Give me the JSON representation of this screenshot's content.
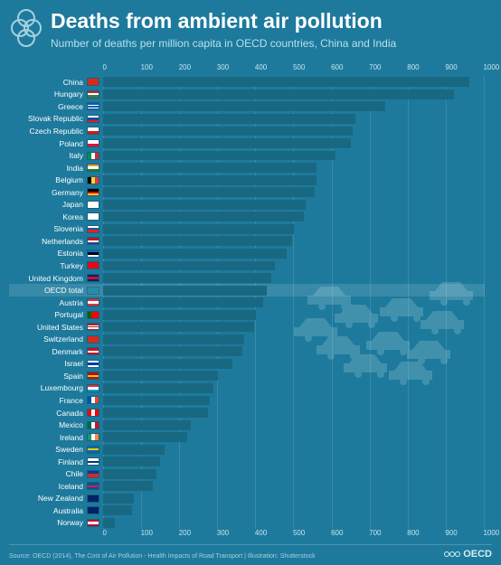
{
  "header": {
    "title": "Deaths from ambient air pollution",
    "subtitle": "Number of deaths per million capita in OECD countries, China and India"
  },
  "chart": {
    "type": "bar",
    "xlim": [
      0,
      1000
    ],
    "xtick_step": 100,
    "xticks": [
      "0",
      "100",
      "200",
      "300",
      "400",
      "500",
      "600",
      "700",
      "800",
      "900",
      "1000"
    ],
    "bar_color": "#196882",
    "background_color": "#1d7a9c",
    "grid_color": "rgba(255,255,255,0.12)",
    "highlight_row_color": "rgba(255,255,255,0.12)",
    "label_fontsize": 8.5,
    "axis_fontsize": 8,
    "label_color": "#ffffff",
    "axis_color": "#c7e4ee",
    "rows": [
      {
        "label": "China",
        "value": 960,
        "highlight": false,
        "flag": {
          "dir": "h",
          "stripes": [
            "#de2910",
            "#de2910"
          ]
        }
      },
      {
        "label": "Hungary",
        "value": 920,
        "highlight": false,
        "flag": {
          "dir": "h",
          "stripes": [
            "#cd212a",
            "#ffffff",
            "#3a7d44"
          ]
        }
      },
      {
        "label": "Greece",
        "value": 740,
        "highlight": false,
        "flag": {
          "dir": "h",
          "stripes": [
            "#0d5eaf",
            "#ffffff",
            "#0d5eaf",
            "#ffffff",
            "#0d5eaf"
          ]
        }
      },
      {
        "label": "Slovak Republic",
        "value": 660,
        "highlight": false,
        "flag": {
          "dir": "h",
          "stripes": [
            "#ffffff",
            "#0b4ea2",
            "#ee1620"
          ]
        }
      },
      {
        "label": "Czech Republic",
        "value": 655,
        "highlight": false,
        "flag": {
          "dir": "h",
          "stripes": [
            "#ffffff",
            "#d7141a"
          ]
        }
      },
      {
        "label": "Poland",
        "value": 650,
        "highlight": false,
        "flag": {
          "dir": "h",
          "stripes": [
            "#ffffff",
            "#dc143c"
          ]
        }
      },
      {
        "label": "Italy",
        "value": 610,
        "highlight": false,
        "flag": {
          "dir": "v",
          "stripes": [
            "#009246",
            "#ffffff",
            "#ce2b37"
          ]
        }
      },
      {
        "label": "India",
        "value": 560,
        "highlight": false,
        "flag": {
          "dir": "h",
          "stripes": [
            "#ff9933",
            "#ffffff",
            "#138808"
          ]
        }
      },
      {
        "label": "Belgium",
        "value": 560,
        "highlight": false,
        "flag": {
          "dir": "v",
          "stripes": [
            "#000000",
            "#fdda24",
            "#ef3340"
          ]
        }
      },
      {
        "label": "Germany",
        "value": 555,
        "highlight": false,
        "flag": {
          "dir": "h",
          "stripes": [
            "#000000",
            "#dd0000",
            "#ffce00"
          ]
        }
      },
      {
        "label": "Japan",
        "value": 530,
        "highlight": false,
        "flag": {
          "dir": "h",
          "stripes": [
            "#ffffff"
          ]
        }
      },
      {
        "label": "Korea",
        "value": 525,
        "highlight": false,
        "flag": {
          "dir": "h",
          "stripes": [
            "#ffffff"
          ]
        }
      },
      {
        "label": "Slovenia",
        "value": 500,
        "highlight": false,
        "flag": {
          "dir": "h",
          "stripes": [
            "#ffffff",
            "#005da4",
            "#ed1c24"
          ]
        }
      },
      {
        "label": "Netherlands",
        "value": 495,
        "highlight": false,
        "flag": {
          "dir": "h",
          "stripes": [
            "#ae1c28",
            "#ffffff",
            "#21468b"
          ]
        }
      },
      {
        "label": "Estonia",
        "value": 480,
        "highlight": false,
        "flag": {
          "dir": "h",
          "stripes": [
            "#0072ce",
            "#000000",
            "#ffffff"
          ]
        }
      },
      {
        "label": "Turkey",
        "value": 450,
        "highlight": false,
        "flag": {
          "dir": "h",
          "stripes": [
            "#e30a17"
          ]
        }
      },
      {
        "label": "United Kingdom",
        "value": 440,
        "highlight": false,
        "flag": {
          "dir": "h",
          "stripes": [
            "#012169",
            "#c8102e",
            "#012169"
          ]
        }
      },
      {
        "label": "OECD total",
        "value": 430,
        "highlight": true,
        "flag": {
          "dir": "h",
          "stripes": [
            "#2a8aab"
          ]
        }
      },
      {
        "label": "Austria",
        "value": 420,
        "highlight": false,
        "flag": {
          "dir": "h",
          "stripes": [
            "#ed2939",
            "#ffffff",
            "#ed2939"
          ]
        }
      },
      {
        "label": "Portugal",
        "value": 400,
        "highlight": false,
        "flag": {
          "dir": "v",
          "stripes": [
            "#006600",
            "#ff0000",
            "#ff0000"
          ]
        }
      },
      {
        "label": "United States",
        "value": 395,
        "highlight": false,
        "flag": {
          "dir": "h",
          "stripes": [
            "#b22234",
            "#ffffff",
            "#b22234",
            "#ffffff",
            "#b22234"
          ]
        }
      },
      {
        "label": "Switzerland",
        "value": 370,
        "highlight": false,
        "flag": {
          "dir": "h",
          "stripes": [
            "#d52b1e"
          ]
        }
      },
      {
        "label": "Denmark",
        "value": 365,
        "highlight": false,
        "flag": {
          "dir": "h",
          "stripes": [
            "#c8102e",
            "#ffffff",
            "#c8102e"
          ]
        }
      },
      {
        "label": "Israel",
        "value": 340,
        "highlight": false,
        "flag": {
          "dir": "h",
          "stripes": [
            "#ffffff",
            "#0038b8",
            "#ffffff"
          ]
        }
      },
      {
        "label": "Spain",
        "value": 300,
        "highlight": false,
        "flag": {
          "dir": "h",
          "stripes": [
            "#aa151b",
            "#f1bf00",
            "#aa151b"
          ]
        }
      },
      {
        "label": "Luxembourg",
        "value": 290,
        "highlight": false,
        "flag": {
          "dir": "h",
          "stripes": [
            "#ed2939",
            "#ffffff",
            "#00a1de"
          ]
        }
      },
      {
        "label": "France",
        "value": 280,
        "highlight": false,
        "flag": {
          "dir": "v",
          "stripes": [
            "#0055a4",
            "#ffffff",
            "#ef4135"
          ]
        }
      },
      {
        "label": "Canada",
        "value": 275,
        "highlight": false,
        "flag": {
          "dir": "v",
          "stripes": [
            "#ff0000",
            "#ffffff",
            "#ff0000"
          ]
        }
      },
      {
        "label": "Mexico",
        "value": 230,
        "highlight": false,
        "flag": {
          "dir": "v",
          "stripes": [
            "#006847",
            "#ffffff",
            "#ce1126"
          ]
        }
      },
      {
        "label": "Ireland",
        "value": 220,
        "highlight": false,
        "flag": {
          "dir": "v",
          "stripes": [
            "#169b62",
            "#ffffff",
            "#ff883e"
          ]
        }
      },
      {
        "label": "Sweden",
        "value": 160,
        "highlight": false,
        "flag": {
          "dir": "h",
          "stripes": [
            "#006aa7",
            "#fecc00",
            "#006aa7"
          ]
        }
      },
      {
        "label": "Finland",
        "value": 150,
        "highlight": false,
        "flag": {
          "dir": "h",
          "stripes": [
            "#ffffff",
            "#003580",
            "#ffffff"
          ]
        }
      },
      {
        "label": "Chile",
        "value": 140,
        "highlight": false,
        "flag": {
          "dir": "h",
          "stripes": [
            "#0039a6",
            "#d52b1e"
          ]
        }
      },
      {
        "label": "Iceland",
        "value": 130,
        "highlight": false,
        "flag": {
          "dir": "h",
          "stripes": [
            "#02529c",
            "#dc1e35",
            "#02529c"
          ]
        }
      },
      {
        "label": "New Zealand",
        "value": 80,
        "highlight": false,
        "flag": {
          "dir": "h",
          "stripes": [
            "#012169"
          ]
        }
      },
      {
        "label": "Australia",
        "value": 75,
        "highlight": false,
        "flag": {
          "dir": "h",
          "stripes": [
            "#012169"
          ]
        }
      },
      {
        "label": "Norway",
        "value": 30,
        "highlight": false,
        "flag": {
          "dir": "h",
          "stripes": [
            "#ba0c2f",
            "#ffffff",
            "#ba0c2f"
          ]
        }
      }
    ]
  },
  "footer": {
    "source": "Source: OECD (2014), The Cost of Air Pollution - Health Impacts of Road Transport | Illustration: Shutterstock",
    "brand": "OECD"
  },
  "bg_illustration": {
    "description": "cluster-of-cars",
    "color": "#7db6c8",
    "opacity": 0.28
  }
}
